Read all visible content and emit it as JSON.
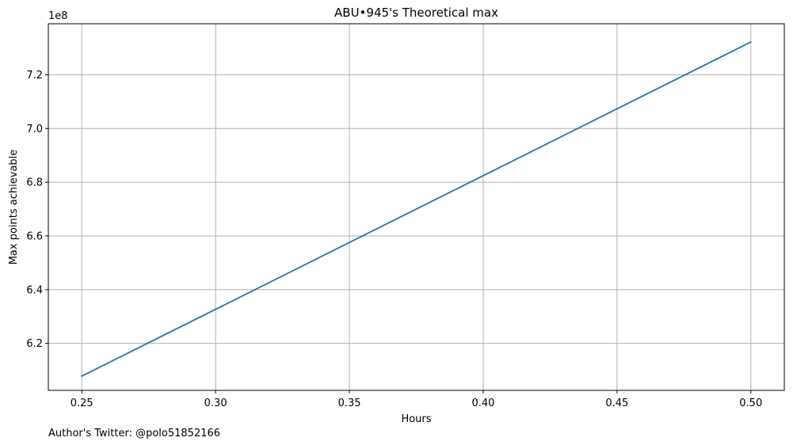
{
  "chart_data": {
    "type": "line",
    "title": "ABU•945's Theoretical max",
    "xlabel": "Hours",
    "ylabel": "Max points achievable",
    "y_offset_label": "1e8",
    "footer": "Author's Twitter: @polo51852166",
    "grid": true,
    "xlim": [
      0.2375,
      0.5125
    ],
    "ylim": [
      602500000.0,
      739000000.0
    ],
    "x_ticks": [
      0.25,
      0.3,
      0.35,
      0.4,
      0.45,
      0.5
    ],
    "x_tick_labels": [
      "0.25",
      "0.30",
      "0.35",
      "0.40",
      "0.45",
      "0.50"
    ],
    "y_ticks": [
      620000000.0,
      640000000.0,
      660000000.0,
      680000000.0,
      700000000.0,
      720000000.0
    ],
    "y_tick_labels": [
      "6.2",
      "6.4",
      "6.6",
      "6.8",
      "7.0",
      "7.2"
    ],
    "series": [
      {
        "color": "#1f77b4",
        "x": [
          0.25,
          0.5
        ],
        "y": [
          607800000.0,
          732200000.0
        ]
      }
    ],
    "colors": {
      "grid": "#b0b0b0",
      "axes": "#000000"
    }
  }
}
